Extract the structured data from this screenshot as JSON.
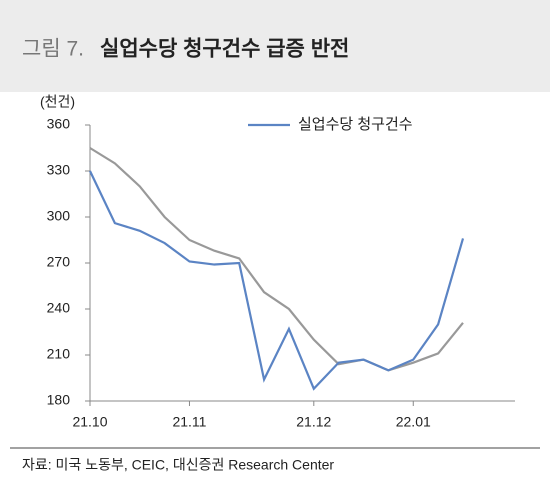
{
  "chart_data": {
    "type": "line",
    "figure_label": "그림 7.",
    "title": "실업수당 청구건수 급증 반전",
    "y_label": "(천건)",
    "source": "자료: 미국 노동부, CEIC, 대신증권 Research Center",
    "categories": [
      "21.10",
      null,
      null,
      null,
      "21.11",
      null,
      null,
      null,
      null,
      "21.12",
      null,
      null,
      null,
      "22.01",
      null,
      null
    ],
    "series": [
      {
        "name": "실업수당 청구건수",
        "color": "#5b84c4",
        "values": [
          330,
          296,
          291,
          283,
          271,
          269,
          270,
          194,
          227,
          188,
          205,
          207,
          200,
          207,
          230,
          286
        ]
      },
      {
        "color": "#999999",
        "values": [
          345,
          335,
          320,
          300,
          285,
          278,
          273,
          251,
          240,
          220,
          204,
          207,
          200,
          205,
          211,
          231
        ]
      }
    ],
    "ylim": [
      180,
      360
    ],
    "yticks": [
      180,
      210,
      240,
      270,
      300,
      330,
      360
    ],
    "legend": "top-right"
  }
}
